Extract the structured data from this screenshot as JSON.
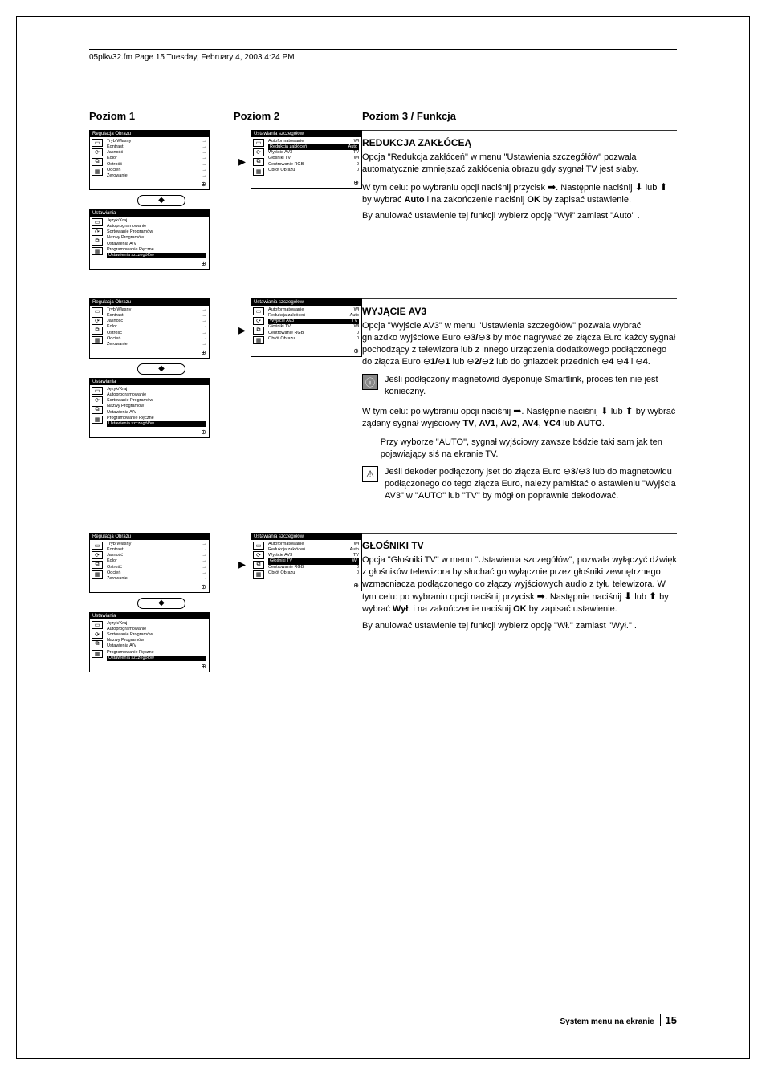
{
  "header": {
    "text": "05plkv32.fm  Page 15  Tuesday, February 4, 2003  4:24 PM"
  },
  "columns": {
    "col1": "Poziom 1",
    "col2": "Poziom 2",
    "col3": "Poziom 3 / Funkcja"
  },
  "menu_regulacja": {
    "title": "Regulacja Obrazu",
    "items": [
      "Tryb Własny",
      "Kontrast",
      "Jasność",
      "Kolor",
      "Ostrość",
      "Odcień",
      "Zerowanie"
    ]
  },
  "menu_ustawiania": {
    "title": "Ustawiania",
    "items": [
      "Język/Kraj",
      "Autoprogramowanie",
      "Sortowanie Programów",
      "Nazwy Programów",
      "Ustawienia A/V",
      "Programowanie Ręczne",
      "Ustawienia szczegółów"
    ]
  },
  "menu_szczegoly_1": {
    "title": "Ustawiania szczegółów",
    "rows": [
      {
        "k": "Autoformatowanie",
        "v": "Wł"
      },
      {
        "k": "Redukcja zakłóceń",
        "v": "Auto"
      },
      {
        "k": "Wyjście AV3",
        "v": "TV"
      },
      {
        "k": "Głośniki TV",
        "v": "Wł"
      },
      {
        "k": "Centrowanie RGB",
        "v": "0"
      },
      {
        "k": "Obrót Obrazu",
        "v": "0"
      }
    ],
    "highlight": 1
  },
  "menu_szczegoly_2": {
    "title": "Ustawiania szczegółów",
    "rows": [
      {
        "k": "Autoformatowanie",
        "v": "Wł"
      },
      {
        "k": "Redukcja zakłóceń",
        "v": "Auto"
      },
      {
        "k": "Wyjście AV3",
        "v": "TV"
      },
      {
        "k": "Głośniki TV",
        "v": "Wł"
      },
      {
        "k": "Centrowanie RGB",
        "v": "0"
      },
      {
        "k": "Obrót Obrazu",
        "v": "0"
      }
    ],
    "highlight": 2
  },
  "menu_szczegoly_3": {
    "title": "Ustawiania szczegółów",
    "rows": [
      {
        "k": "Autoformatowanie",
        "v": "Wł"
      },
      {
        "k": "Redukcja zakłóceń",
        "v": "Auto"
      },
      {
        "k": "Wyjście AV3",
        "v": "TV"
      },
      {
        "k": "Głośniki TV",
        "v": "Wł"
      },
      {
        "k": "Centrowanie RGB",
        "v": "0"
      },
      {
        "k": "Obrót Obrazu",
        "v": "0"
      }
    ],
    "highlight": 3
  },
  "section_redukcja": {
    "title": "REDUKCJA ZAKŁÓCEĄ",
    "p1": "Opcja \"Redukcja zakłóceń\" w menu \"Ustawienia szczegółów\" pozwala automatycznie zmniejszać zakłócenia obrazu gdy sygnał TV jest słaby.",
    "p2_a": "W tym celu: po wybraniu opcji naciśnij przycisk ",
    "p2_b": ". Następnie naciśnij ",
    "p2_c": " lub ",
    "p2_d": " by wybrać ",
    "auto": "Auto",
    "p2_e": " i na zakończenie naciśnij ",
    "ok": "OK",
    "p2_f": " by zapisać ustawienie.",
    "p3": "By anulować ustawienie tej funkcji wybierz opcję \"Wył\" zamiast \"Auto\" ."
  },
  "section_wyjacie": {
    "title": "WYJĄCIE AV3",
    "p1_a": "Opcja \"Wyjście AV3\" w menu \"Ustawienia szczegółów\" pozwala wybrać gniazdko wyjściowe Euro ",
    "p1_b": " by móc nagrywać ze złącza Euro każdy sygnał pochodzący z telewizora lub z innego urządzenia dodatkowego podłączonego do złącza Euro ",
    "p1_c": " lub ",
    "p1_d": " lub do gniazdek przednich ",
    "p1_e": " i ",
    "p1_f": ".",
    "conn_3": "3/",
    "s3": "3",
    "conn_1": "1/",
    "s1": "1",
    "conn_2": "2/",
    "s2": "2",
    "s4a": "4 ",
    "s4b": "4",
    "note1": "Jeśli podłączony magnetowid dysponuje Smartlink, proces ten nie jest konieczny.",
    "p2_a": "W tym celu: po wybraniu opcji naciśnij ",
    "p2_b": ". Następnie naciśnij ",
    "p2_c": " lub ",
    "p2_d": " by wybrać żądany sygnał wyjściowy ",
    "tv": "TV",
    "av1": "AV1",
    "av2": "AV2",
    "av4": "AV4",
    "yc4": "YC4",
    "p2_e": " lub ",
    "auto": "AUTO",
    "p2_f": ".",
    "note2": "Przy wyborze \"AUTO\", sygnał wyjściowy zawsze bśdzie taki sam jak ten pojawiający siś na ekranie TV.",
    "note3_a": "Jeśli dekoder podłączony jset do złącza Euro ",
    "note3_b": " lub do magnetowidu podłączonego do tego złącza Euro, należy pamiśtać o astawieniu \"Wyjścia AV3\" w \"AUTO\" lub \"TV\" by mógł on poprawnie dekodować."
  },
  "section_glosniki": {
    "title": "GŁOŚNIKI TV",
    "p1_a": "Opcja \"Głośniki TV\" w menu \"Ustawienia szczegółów\", pozwala wyłączyć dźwięk z głośników telewizora by słuchać go wyłącznie przez głośniki zewnętrznego wzmacniacza podłączonego do złączy wyjściowych audio z tyłu telewizora. W tym celu: po wybraniu opcji naciśnij przycisk ",
    "p1_b": ". Następnie naciśnij ",
    "p1_c": " lub ",
    "p1_d": " by wybrać ",
    "wyl": "Wył",
    "p1_e": ". i na zakończenie naciśnij ",
    "ok": "OK",
    "p1_f": " by zapisać ustawienie.",
    "p2": "By anulować ustawienie tej funkcji wybierz opcję \"Wł.\" zamiast \"Wył.\" ."
  },
  "footer": {
    "text": "System menu na ekranie",
    "page": "15"
  }
}
